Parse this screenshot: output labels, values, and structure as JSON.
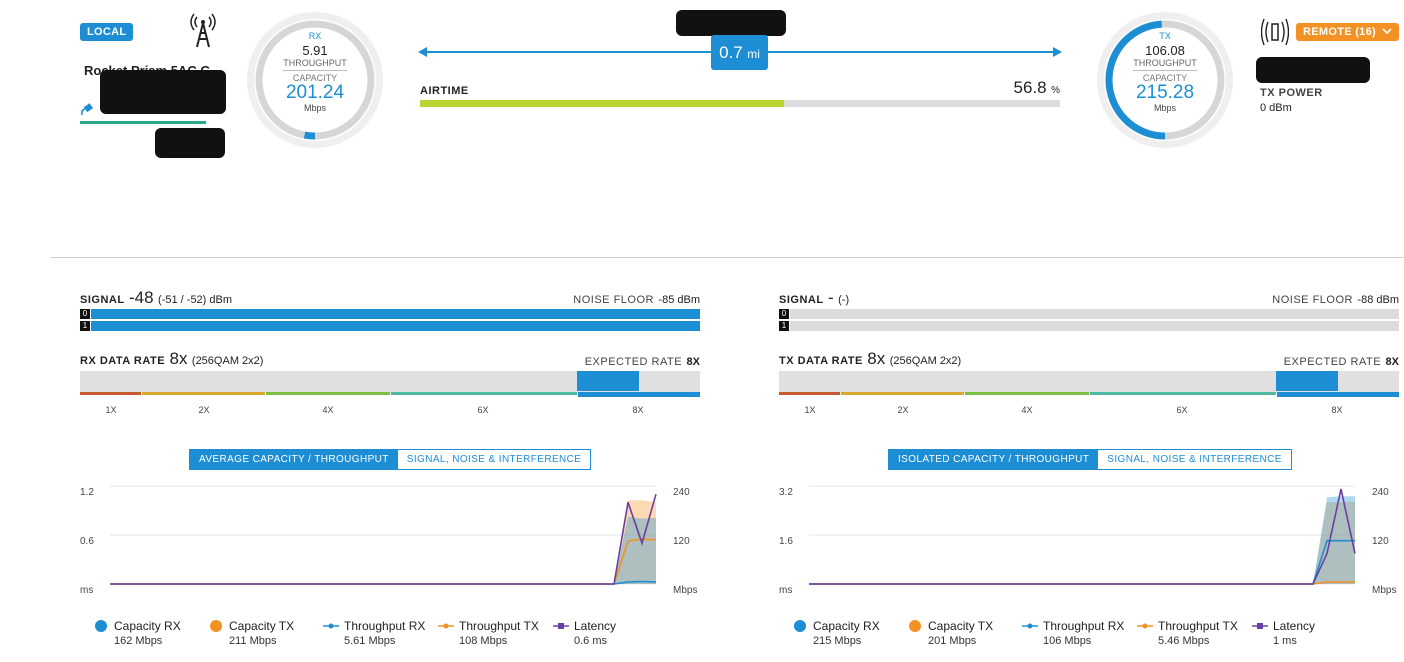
{
  "local": {
    "badge": "LOCAL",
    "device_name": "Rocket Prism 5AC G...",
    "antenna_icon": "tower-icon",
    "gauge": {
      "direction": "RX",
      "throughput_value": "5.91",
      "throughput_label": "THROUGHPUT",
      "capacity_label": "CAPACITY",
      "capacity_value": "201.24",
      "unit": "Mbps",
      "fill_fraction": 0.03
    }
  },
  "link": {
    "distance_value": "0.7",
    "distance_unit": "mi",
    "airtime_label": "AIRTIME",
    "airtime_value": "56.8",
    "airtime_unit": "%",
    "airtime_fraction": 0.568
  },
  "remote": {
    "badge": "REMOTE (16)",
    "antenna_icon": "antenna-broadcast-icon",
    "tx_power_label": "TX POWER",
    "tx_power_value": "0 dBm",
    "gauge": {
      "direction": "TX",
      "throughput_value": "106.08",
      "throughput_label": "THROUGHPUT",
      "capacity_label": "CAPACITY",
      "capacity_value": "215.28",
      "unit": "Mbps",
      "fill_fraction": 0.49
    }
  },
  "panels": [
    {
      "signal_label": "SIGNAL",
      "signal_value": "-48",
      "signal_detail": "(-51 / -52) dBm",
      "noise_label": "NOISE FLOOR",
      "noise_value": "-85 dBm",
      "chains": [
        {
          "index": "0",
          "level": 1.0
        },
        {
          "index": "1",
          "level": 1.0
        }
      ],
      "rate_label": "RX DATA RATE",
      "rate_value": "8x",
      "rate_detail": "(256QAM 2x2)",
      "expected_label": "EXPECTED RATE",
      "expected_value": "8X",
      "rate_ticks": [
        "1X",
        "2X",
        "4X",
        "6X",
        "8X"
      ],
      "tabs": [
        "AVERAGE CAPACITY / THROUGHPUT",
        "SIGNAL, NOISE & INTERFERENCE"
      ],
      "legend": [
        {
          "name": "Capacity RX",
          "value": "162 Mbps",
          "color": "#1d8ed4",
          "marker": "dot"
        },
        {
          "name": "Capacity TX",
          "value": "211 Mbps",
          "color": "#f39224",
          "marker": "dot"
        },
        {
          "name": "Throughput RX",
          "value": "5.61 Mbps",
          "color": "#1d8ed4",
          "marker": "line"
        },
        {
          "name": "Throughput TX",
          "value": "108 Mbps",
          "color": "#f39224",
          "marker": "line"
        },
        {
          "name": "Latency",
          "value": "0.6 ms",
          "color": "#6a3fa3",
          "marker": "square"
        }
      ],
      "chart_data": {
        "type": "area",
        "left_axis": {
          "ticks": [
            "1.2",
            "0.6",
            "ms"
          ],
          "ylim": [
            0,
            1.2
          ]
        },
        "right_axis": {
          "ticks": [
            "240",
            "120",
            "Mbps"
          ],
          "ylim": [
            0,
            240
          ]
        },
        "x": [
          0,
          1,
          2,
          3,
          4,
          5,
          6,
          7,
          8,
          9,
          10,
          11,
          12,
          13,
          14,
          15,
          16,
          17,
          18,
          19,
          20,
          21,
          22,
          23,
          24,
          25,
          26,
          27,
          28,
          29,
          30,
          31,
          32,
          33,
          34,
          35,
          36,
          37,
          38,
          39
        ],
        "series": [
          {
            "name": "Capacity TX",
            "color": "#f39224",
            "values": [
              0,
              0,
              0,
              0,
              0,
              0,
              0,
              0,
              0,
              0,
              0,
              0,
              0,
              0,
              0,
              0,
              0,
              0,
              0,
              0,
              0,
              0,
              0,
              0,
              0,
              0,
              0,
              0,
              0,
              0,
              0,
              0,
              0,
              0,
              0,
              0,
              0,
              205,
              205,
              200
            ]
          },
          {
            "name": "Capacity RX",
            "color": "#1d8ed4",
            "values": [
              0,
              0,
              0,
              0,
              0,
              0,
              0,
              0,
              0,
              0,
              0,
              0,
              0,
              0,
              0,
              0,
              0,
              0,
              0,
              0,
              0,
              0,
              0,
              0,
              0,
              0,
              0,
              0,
              0,
              0,
              0,
              0,
              0,
              0,
              0,
              0,
              0,
              165,
              160,
              162
            ]
          },
          {
            "name": "Throughput RX",
            "color": "#1d8ed4",
            "values": [
              0,
              0,
              0,
              0,
              0,
              0,
              0,
              0,
              0,
              0,
              0,
              0,
              0,
              0,
              0,
              0,
              0,
              0,
              0,
              0,
              0,
              0,
              0,
              0,
              0,
              0,
              0,
              0,
              0,
              0,
              0,
              0,
              0,
              0,
              0,
              0,
              0,
              5,
              6,
              5
            ]
          },
          {
            "name": "Throughput TX",
            "color": "#f39224",
            "values": [
              0,
              0,
              0,
              0,
              0,
              0,
              0,
              0,
              0,
              0,
              0,
              0,
              0,
              0,
              0,
              0,
              0,
              0,
              0,
              0,
              0,
              0,
              0,
              0,
              0,
              0,
              0,
              0,
              0,
              0,
              0,
              0,
              0,
              0,
              0,
              0,
              0,
              105,
              110,
              108
            ]
          },
          {
            "name": "Latency",
            "color": "#6a3fa3",
            "values": [
              0,
              0,
              0,
              0,
              0,
              0,
              0,
              0,
              0,
              0,
              0,
              0,
              0,
              0,
              0,
              0,
              0,
              0,
              0,
              0,
              0,
              0,
              0,
              0,
              0,
              0,
              0,
              0,
              0,
              0,
              0,
              0,
              0,
              0,
              0,
              0,
              0,
              1.0,
              0.5,
              1.1
            ]
          }
        ]
      }
    },
    {
      "signal_label": "SIGNAL",
      "signal_value": "-",
      "signal_detail": "(-)",
      "noise_label": "NOISE FLOOR",
      "noise_value": "-88 dBm",
      "chains": [
        {
          "index": "0",
          "level": 0
        },
        {
          "index": "1",
          "level": 0
        }
      ],
      "rate_label": "TX DATA RATE",
      "rate_value": "8x",
      "rate_detail": "(256QAM 2x2)",
      "expected_label": "EXPECTED RATE",
      "expected_value": "8X",
      "rate_ticks": [
        "1X",
        "2X",
        "4X",
        "6X",
        "8X"
      ],
      "tabs": [
        "ISOLATED CAPACITY / THROUGHPUT",
        "SIGNAL, NOISE & INTERFERENCE"
      ],
      "legend": [
        {
          "name": "Capacity RX",
          "value": "215 Mbps",
          "color": "#1d8ed4",
          "marker": "dot"
        },
        {
          "name": "Capacity TX",
          "value": "201 Mbps",
          "color": "#f39224",
          "marker": "dot"
        },
        {
          "name": "Throughput RX",
          "value": "106 Mbps",
          "color": "#1d8ed4",
          "marker": "line"
        },
        {
          "name": "Throughput TX",
          "value": "5.46 Mbps",
          "color": "#f39224",
          "marker": "line"
        },
        {
          "name": "Latency",
          "value": "1 ms",
          "color": "#6a3fa3",
          "marker": "square"
        }
      ],
      "chart_data": {
        "type": "area",
        "left_axis": {
          "ticks": [
            "3.2",
            "1.6",
            "ms"
          ],
          "ylim": [
            0,
            3.2
          ]
        },
        "right_axis": {
          "ticks": [
            "240",
            "120",
            "Mbps"
          ],
          "ylim": [
            0,
            240
          ]
        },
        "x": [
          0,
          1,
          2,
          3,
          4,
          5,
          6,
          7,
          8,
          9,
          10,
          11,
          12,
          13,
          14,
          15,
          16,
          17,
          18,
          19,
          20,
          21,
          22,
          23,
          24,
          25,
          26,
          27,
          28,
          29,
          30,
          31,
          32,
          33,
          34,
          35,
          36,
          37,
          38,
          39
        ],
        "series": [
          {
            "name": "Capacity TX",
            "color": "#f39224",
            "values": [
              0,
              0,
              0,
              0,
              0,
              0,
              0,
              0,
              0,
              0,
              0,
              0,
              0,
              0,
              0,
              0,
              0,
              0,
              0,
              0,
              0,
              0,
              0,
              0,
              0,
              0,
              0,
              0,
              0,
              0,
              0,
              0,
              0,
              0,
              0,
              0,
              0,
              200,
              200,
              201
            ]
          },
          {
            "name": "Capacity RX",
            "color": "#1d8ed4",
            "values": [
              0,
              0,
              0,
              0,
              0,
              0,
              0,
              0,
              0,
              0,
              0,
              0,
              0,
              0,
              0,
              0,
              0,
              0,
              0,
              0,
              0,
              0,
              0,
              0,
              0,
              0,
              0,
              0,
              0,
              0,
              0,
              0,
              0,
              0,
              0,
              0,
              0,
              212,
              215,
              215
            ]
          },
          {
            "name": "Throughput RX",
            "color": "#1d8ed4",
            "values": [
              0,
              0,
              0,
              0,
              0,
              0,
              0,
              0,
              0,
              0,
              0,
              0,
              0,
              0,
              0,
              0,
              0,
              0,
              0,
              0,
              0,
              0,
              0,
              0,
              0,
              0,
              0,
              0,
              0,
              0,
              0,
              0,
              0,
              0,
              0,
              0,
              0,
              106,
              106,
              106
            ]
          },
          {
            "name": "Throughput TX",
            "color": "#f39224",
            "values": [
              0,
              0,
              0,
              0,
              0,
              0,
              0,
              0,
              0,
              0,
              0,
              0,
              0,
              0,
              0,
              0,
              0,
              0,
              0,
              0,
              0,
              0,
              0,
              0,
              0,
              0,
              0,
              0,
              0,
              0,
              0,
              0,
              0,
              0,
              0,
              0,
              0,
              5,
              5,
              5
            ]
          },
          {
            "name": "Latency",
            "color": "#6a3fa3",
            "values": [
              0,
              0,
              0,
              0,
              0,
              0,
              0,
              0,
              0,
              0,
              0,
              0,
              0,
              0,
              0,
              0,
              0,
              0,
              0,
              0,
              0,
              0,
              0,
              0,
              0,
              0,
              0,
              0,
              0,
              0,
              0,
              0,
              0,
              0,
              0,
              0,
              0,
              1.0,
              3.1,
              1.0
            ]
          }
        ]
      }
    }
  ],
  "colors": {
    "accent": "#1d8ed4",
    "local_badge": "#1d8ed4",
    "remote_badge": "#f39224",
    "airtime_fill": "#b9d531"
  }
}
